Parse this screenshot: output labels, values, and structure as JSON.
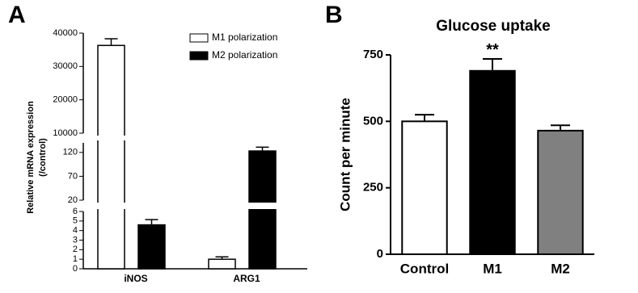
{
  "chart_data": [
    {
      "type": "broken-bar",
      "panel": "A",
      "y_label": [
        "Relative mRNA expression",
        "(/control)"
      ],
      "categories": [
        "iNOS",
        "ARG1"
      ],
      "series": [
        {
          "name": "M1 polarization",
          "color": "#ffffff",
          "values": [
            36300,
            1.0
          ],
          "errors": [
            2000,
            0.25
          ]
        },
        {
          "name": "M2 polarization",
          "color": "#000000",
          "values": [
            4.6,
            123
          ],
          "errors": [
            0.55,
            8
          ]
        }
      ],
      "y_segments": [
        {
          "ylim": [
            0,
            6
          ],
          "yticks": [
            0,
            1,
            2,
            3,
            4,
            5,
            6
          ]
        },
        {
          "ylim": [
            20,
            140
          ],
          "yticks": [
            20,
            70,
            120
          ]
        },
        {
          "ylim": [
            10000,
            40000
          ],
          "yticks": [
            10000,
            20000,
            30000,
            40000
          ]
        }
      ],
      "legend": "top-right"
    },
    {
      "type": "bar",
      "panel": "B",
      "title": "Glucose uptake",
      "y_label": "Count per minute",
      "categories": [
        "Control",
        "M1",
        "M2"
      ],
      "values": [
        500,
        690,
        465
      ],
      "errors": [
        25,
        45,
        20
      ],
      "colors": [
        "#ffffff",
        "#000000",
        "#808080"
      ],
      "annotations": [
        {
          "category": 1,
          "text": "**"
        }
      ],
      "ylim": [
        0,
        750
      ],
      "yticks": [
        0,
        250,
        500,
        750
      ]
    }
  ]
}
